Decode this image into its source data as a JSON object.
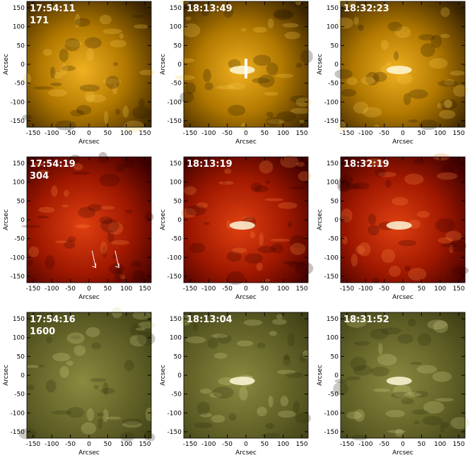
{
  "axis_label": "Arcsec",
  "xlim": [
    -167,
    167
  ],
  "ylim": [
    -167,
    167
  ],
  "xticks": [
    -150,
    -100,
    -50,
    0,
    50,
    100,
    150
  ],
  "yticks": [
    -150,
    -100,
    -50,
    0,
    50,
    100,
    150
  ],
  "rows": [
    {
      "channel": "171",
      "panels": [
        "17:54:11",
        "18:13:49",
        "18:32:23"
      ]
    },
    {
      "channel": "304",
      "panels": [
        "17:54:19",
        "18:13:19",
        "18:32:19"
      ]
    },
    {
      "channel": "1600",
      "panels": [
        "17:54:16",
        "18:13:04",
        "18:31:52"
      ]
    }
  ]
}
